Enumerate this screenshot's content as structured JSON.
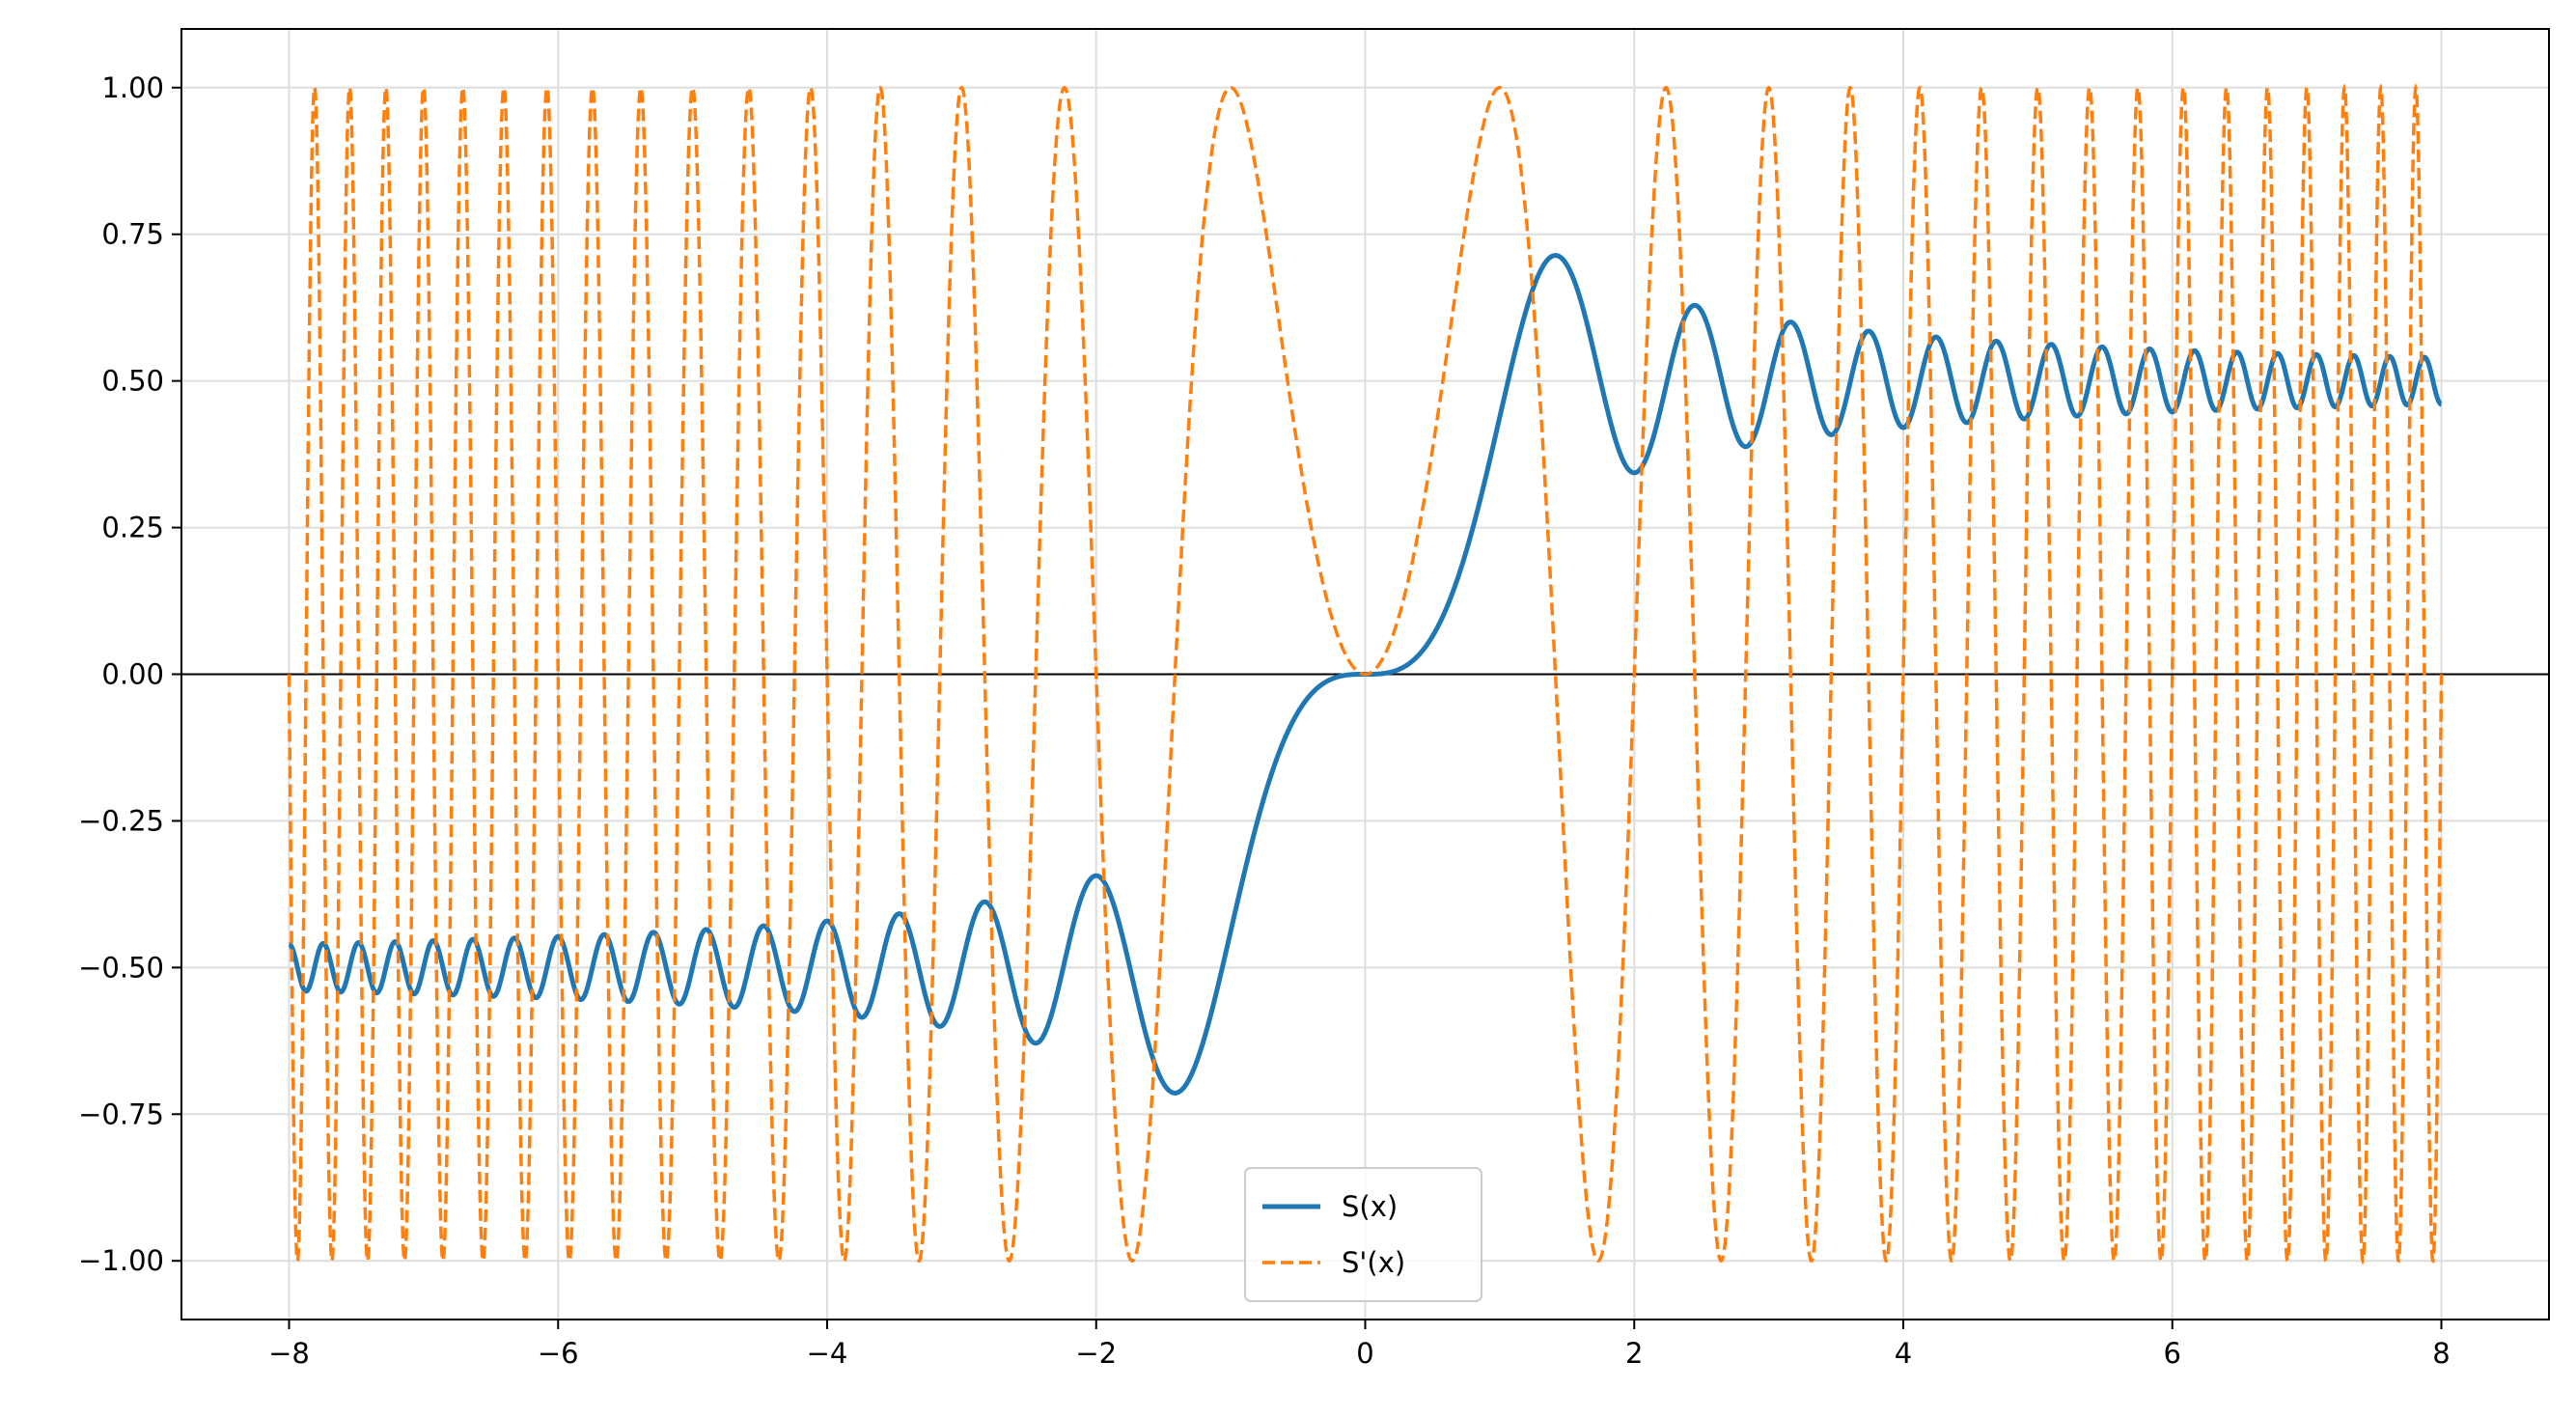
{
  "chart_data": {
    "type": "line",
    "title": "",
    "xlabel": "",
    "ylabel": "",
    "xlim": [
      -8.8,
      8.8
    ],
    "ylim": [
      -1.1,
      1.1
    ],
    "xticks": [
      -8,
      -6,
      -4,
      -2,
      0,
      2,
      4,
      6,
      8
    ],
    "xtick_labels": [
      "−8",
      "−6",
      "−4",
      "−2",
      "0",
      "2",
      "4",
      "6",
      "8"
    ],
    "yticks": [
      -1.0,
      -0.75,
      -0.5,
      -0.25,
      0.0,
      0.25,
      0.5,
      0.75,
      1.0
    ],
    "ytick_labels": [
      "−1.00",
      "−0.75",
      "−0.50",
      "−0.25",
      "0.00",
      "0.25",
      "0.50",
      "0.75",
      "1.00"
    ],
    "grid": true,
    "zero_line": true,
    "legend_position": "bottom-center",
    "x_range": [
      -8,
      8
    ],
    "series": [
      {
        "name": "S(x)",
        "expression": "S(x) = ∫₀ˣ sin(πt²/2) dt",
        "color": "#1f77b4",
        "style": "solid",
        "key_points": [
          [
            -8,
            -0.46
          ],
          [
            -1.42,
            -0.713
          ],
          [
            0,
            0
          ],
          [
            1.42,
            0.713
          ],
          [
            2.0,
            0.343
          ],
          [
            2.45,
            0.629
          ],
          [
            8,
            0.46
          ]
        ]
      },
      {
        "name": "S'(x)",
        "expression": "S'(x) = sin(πx²/2)",
        "color": "#ff7f0e",
        "style": "dashed",
        "key_points": [
          [
            -1.0,
            1.0
          ],
          [
            0,
            0
          ],
          [
            1.0,
            1.0
          ],
          [
            1.732,
            -1.0
          ],
          [
            2.236,
            1.0
          ],
          [
            2.646,
            -1.0
          ]
        ]
      }
    ]
  }
}
